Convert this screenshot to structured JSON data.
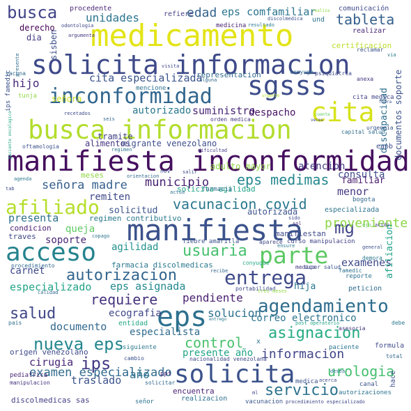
{
  "words": [
    {
      "text": "medicamento",
      "color": "#e3e418"
    },
    {
      "text": "solicita informacion",
      "color": "#3e4a89"
    },
    {
      "text": "busca informacion",
      "color": "#b2dd2d"
    },
    {
      "text": "manifiesta inconformidad",
      "color": "#450f5e"
    },
    {
      "text": "manifiesta",
      "color": "#3b528b"
    },
    {
      "text": "inconformidad",
      "color": "#31668e"
    },
    {
      "text": "sgsss",
      "color": "#3d4d8a"
    },
    {
      "text": "cita",
      "color": "#d6e21a"
    },
    {
      "text": "eps",
      "color": "#2d718e"
    },
    {
      "text": "solicita",
      "color": "#3b528b"
    },
    {
      "text": "acceso",
      "color": "#25838e"
    },
    {
      "text": "parte",
      "color": "#5cc863"
    },
    {
      "text": "afiliado",
      "color": "#b5de2b"
    },
    {
      "text": "entrega",
      "color": "#3e4989"
    },
    {
      "text": "agendamiento",
      "color": "#2e6d8e"
    },
    {
      "text": "nueva eps",
      "color": "#24868e"
    },
    {
      "text": "asignacion",
      "color": "#25ab82"
    },
    {
      "text": "servicio",
      "color": "#2c728e"
    },
    {
      "text": "autorizacion",
      "color": "#32658e"
    },
    {
      "text": "usuaria",
      "color": "#46c06f"
    },
    {
      "text": "vacunacion covid",
      "color": "#2a788e"
    },
    {
      "text": "eps medimas",
      "color": "#24878e"
    },
    {
      "text": "salud",
      "color": "#404688"
    },
    {
      "text": "requiere",
      "color": "#46327e"
    },
    {
      "text": "mg",
      "color": "#414487"
    },
    {
      "text": "ips",
      "color": "#443a83"
    },
    {
      "text": "control",
      "color": "#4ac16d"
    },
    {
      "text": "informacion",
      "color": "#404688"
    },
    {
      "text": "urologia",
      "color": "#44bf70"
    },
    {
      "text": "busca",
      "color": "#414487"
    },
    {
      "text": "tableta",
      "color": "#34608d"
    },
    {
      "text": "edad",
      "color": "#33638d"
    },
    {
      "text": "señora madre",
      "color": "#355f8d"
    },
    {
      "text": "municipio",
      "color": "#482173"
    },
    {
      "text": "examenes",
      "color": "#3e4a89"
    },
    {
      "text": "proveniente",
      "color": "#8bd646"
    },
    {
      "text": "pendiente",
      "color": "#481f70"
    },
    {
      "text": "solucion",
      "color": "#2d708e"
    },
    {
      "text": "examen especializado",
      "color": "#306a8e"
    },
    {
      "text": "unidades",
      "color": "#2b758e"
    },
    {
      "text": "eps comfamiliar",
      "color": "#2b748e"
    },
    {
      "text": "cita especializada",
      "color": "#3a538b"
    },
    {
      "text": "suministro",
      "color": "#482475"
    },
    {
      "text": "autorizado",
      "color": "#2a778e"
    },
    {
      "text": "despacho",
      "color": "#471365"
    },
    {
      "text": "atencion",
      "color": "#443b84"
    },
    {
      "text": "consulta",
      "color": "#3e4c8a"
    },
    {
      "text": "hijo",
      "color": "#482979"
    },
    {
      "text": "presenta",
      "color": "#2d708e"
    },
    {
      "text": "queja",
      "color": "#5ec962"
    },
    {
      "text": "soporte",
      "color": "#482576"
    },
    {
      "text": "agilidad",
      "color": "#21918c"
    },
    {
      "text": "carnet",
      "color": "#3e4989"
    },
    {
      "text": "especializado",
      "color": "#20a386"
    },
    {
      "text": "eps asignada",
      "color": "#23888e"
    },
    {
      "text": "documento",
      "color": "#31688e"
    },
    {
      "text": "cirugia",
      "color": "#482677"
    },
    {
      "text": "traslado",
      "color": "#3b528b"
    },
    {
      "text": "correo electronico",
      "color": "#2c738e"
    },
    {
      "text": "presente año",
      "color": "#20a486"
    },
    {
      "text": "año",
      "color": "#2d718e"
    },
    {
      "text": "ecografia",
      "color": "#3f4788"
    },
    {
      "text": "especialista",
      "color": "#2f6b8e"
    },
    {
      "text": "remiten",
      "color": "#3f4889"
    },
    {
      "text": "solicitud",
      "color": "#3a548c"
    },
    {
      "text": "menor",
      "color": "#453781"
    },
    {
      "text": "familiar",
      "color": "#481b6d"
    },
    {
      "text": "discapacidad",
      "color": "#2e6e8e"
    },
    {
      "text": "afiliacion",
      "color": "#1fa187"
    },
    {
      "text": "documentos soporte",
      "color": "#3b518b"
    },
    {
      "text": "hija",
      "color": "#2a768e"
    },
    {
      "text": "adulto mayor",
      "color": "#8fd744"
    },
    {
      "text": "tramite",
      "color": "#424186"
    },
    {
      "text": "alimentos",
      "color": "#453581"
    },
    {
      "text": "migrante venezolano",
      "color": "#3d4e8a"
    },
    {
      "text": "dia",
      "color": "#443983"
    },
    {
      "text": "derecho",
      "color": "#440154"
    },
    {
      "text": "sisben",
      "color": "#3c508b"
    },
    {
      "text": "señora",
      "color": "#cde11d"
    },
    {
      "text": "representacion",
      "color": "#31688e"
    },
    {
      "text": "entidad",
      "color": "#22a785"
    },
    {
      "text": "procedente",
      "color": "#482878"
    },
    {
      "text": "refiere",
      "color": "#433e85"
    },
    {
      "text": "comunicación",
      "color": "#3e4989"
    },
    {
      "text": "realizar",
      "color": "#482979"
    },
    {
      "text": "medicina",
      "color": "#482475"
    },
    {
      "text": "certificacion",
      "color": "#b8de29"
    },
    {
      "text": "regimen contributivo",
      "color": "#2a788e"
    },
    {
      "text": "solicita agilidad",
      "color": "#20a486"
    },
    {
      "text": "autorizada",
      "color": "#3b528b"
    },
    {
      "text": "manifiestan",
      "color": "#3e4a89"
    },
    {
      "text": "especializada",
      "color": "#2c738e"
    },
    {
      "text": "bogota",
      "color": "#31688e"
    },
    {
      "text": "farmacia discolmedicas",
      "color": "#2a788e"
    },
    {
      "text": "orden medica",
      "color": "#453882"
    },
    {
      "text": "curso manipulacion",
      "color": "#414487"
    },
    {
      "text": "fiebre amarilla",
      "color": "#3b518b"
    },
    {
      "text": "mencione",
      "color": "#2c728e"
    },
    {
      "text": "farmacia",
      "color": "#2f6c8e"
    },
    {
      "text": "meses",
      "color": "#8fd744"
    },
    {
      "text": "condicion",
      "color": "#481a6c"
    },
    {
      "text": "traves",
      "color": "#3f4788"
    },
    {
      "text": "procedimiento",
      "color": "#31678e"
    },
    {
      "text": "origen venezolano",
      "color": "#3e4989"
    },
    {
      "text": "discolmedicas sas",
      "color": "#423f85"
    },
    {
      "text": "encuentra",
      "color": "#482071"
    },
    {
      "text": "realizacion",
      "color": "#2e6f8e"
    },
    {
      "text": "vacunacion",
      "color": "#39568c"
    },
    {
      "text": "autorizaciones",
      "color": "#2c728e"
    },
    {
      "text": "canal",
      "color": "#3b528b"
    },
    {
      "text": "hace",
      "color": "#3d4e8a"
    },
    {
      "text": "formula",
      "color": "#3f4889"
    },
    {
      "text": "paciente",
      "color": "#2b758e"
    },
    {
      "text": "conyugue",
      "color": "#22a884"
    },
    {
      "text": "reporte",
      "color": "#2c728e"
    },
    {
      "text": "peticion",
      "color": "#306a8e"
    },
    {
      "text": "psiquiatria",
      "color": "#3e4989"
    },
    {
      "text": "anexa",
      "color": "#453581"
    },
    {
      "text": "cita medica",
      "color": "#404688"
    },
    {
      "text": "capital salud",
      "color": "#2e6d8e"
    },
    {
      "text": "urgencia",
      "color": "#3b528b"
    },
    {
      "text": "eapb",
      "color": "#3e4c8a"
    },
    {
      "text": "nacionalidad venezolana",
      "color": "#3f4788"
    },
    {
      "text": "pediatrica",
      "color": "#482878"
    },
    {
      "text": "manipulacion",
      "color": "#46337f"
    },
    {
      "text": "siguiente",
      "color": "#2a788e"
    },
    {
      "text": "cambio",
      "color": "#3b528b"
    },
    {
      "text": "solicitar",
      "color": "#31688e"
    },
    {
      "text": "ppt",
      "color": "#482475"
    },
    {
      "text": "medica",
      "color": "#3b518b"
    },
    {
      "text": "acerca",
      "color": "#3e4a89"
    },
    {
      "text": "ml",
      "color": "#404688"
    },
    {
      "text": "señor",
      "color": "#2c728e"
    },
    {
      "text": "procedimiento especializado",
      "color": "#3f4788"
    },
    {
      "text": "total",
      "color": "#31688e"
    },
    {
      "text": "pais",
      "color": "#2e6e8e"
    },
    {
      "text": "calidad",
      "color": "#31668e"
    },
    {
      "text": "asesoria",
      "color": "#453781"
    },
    {
      "text": "debe",
      "color": "#2a788e"
    },
    {
      "text": "post operatorio",
      "color": "#20a386"
    },
    {
      "text": "x",
      "color": "#2d718e"
    },
    {
      "text": "super salud",
      "color": "#3b528b"
    },
    {
      "text": "medico",
      "color": "#453882"
    },
    {
      "text": "famedic",
      "color": "#2c728e"
    },
    {
      "text": "portabilidad",
      "color": "#3e4989"
    },
    {
      "text": "recibe",
      "color": "#31668e"
    },
    {
      "text": "tres meses",
      "color": "#8fd744"
    },
    {
      "text": "demora",
      "color": "#2a788e"
    },
    {
      "text": "general",
      "color": "#3b518b"
    },
    {
      "text": "acido",
      "color": "#433e85"
    },
    {
      "text": "ejo",
      "color": "#5ec962"
    },
    {
      "text": "sido",
      "color": "#3e4989"
    },
    {
      "text": "sol",
      "color": "#482878"
    },
    {
      "text": "ensure",
      "color": "#2a788e"
    },
    {
      "text": "aparece",
      "color": "#3f4788"
    },
    {
      "text": "copago",
      "color": "#2c728e"
    },
    {
      "text": "ips famedic",
      "color": "#3b528b"
    },
    {
      "text": "presente",
      "color": "#2e6e8e"
    },
    {
      "text": "vacuna",
      "color": "#31688e"
    },
    {
      "text": "paciente oncologico",
      "color": "#20a386"
    },
    {
      "text": "tab",
      "color": "#3e4989"
    },
    {
      "text": "agenda",
      "color": "#2a788e"
    },
    {
      "text": "oftamologia",
      "color": "#3b518b"
    },
    {
      "text": "recetados",
      "color": "#3e4a89"
    },
    {
      "text": "seis",
      "color": "#31668e"
    },
    {
      "text": "dificultad",
      "color": "#433e85"
    },
    {
      "text": "regimen",
      "color": "#2c728e"
    },
    {
      "text": "nov",
      "color": "#3b528b"
    },
    {
      "text": "orientacion",
      "color": "#31688e"
    },
    {
      "text": "salir",
      "color": "#3e4989"
    },
    {
      "text": "actua",
      "color": "#2e6e8e"
    },
    {
      "text": "odontologia",
      "color": "#3f4788"
    },
    {
      "text": "argumenta",
      "color": "#453581"
    },
    {
      "text": "resultado",
      "color": "#2a788e"
    },
    {
      "text": "discolmedica",
      "color": "#3b518b"
    },
    {
      "text": "und",
      "color": "#2c728e"
    },
    {
      "text": "realiza",
      "color": "#8fd744"
    },
    {
      "text": "visita",
      "color": "#3e4989"
    },
    {
      "text": "alguna",
      "color": "#31668e"
    },
    {
      "text": "conyuge",
      "color": "#2e6e8e"
    },
    {
      "text": "reclamar",
      "color": "#3b528b"
    },
    {
      "text": "via",
      "color": "#2a788e"
    },
    {
      "text": "tunja",
      "color": "#8fd744"
    },
    {
      "text": "urgente",
      "color": "#b5de2b"
    },
    {
      "text": "veces",
      "color": "#3e4989"
    },
    {
      "text": "cuenta",
      "color": "#5ec962"
    },
    {
      "text": "desea",
      "color": "#2c728e"
    },
    {
      "text": "fuera",
      "color": "#3b528b"
    },
    {
      "text": "entrego",
      "color": "#2a788e"
    }
  ]
}
